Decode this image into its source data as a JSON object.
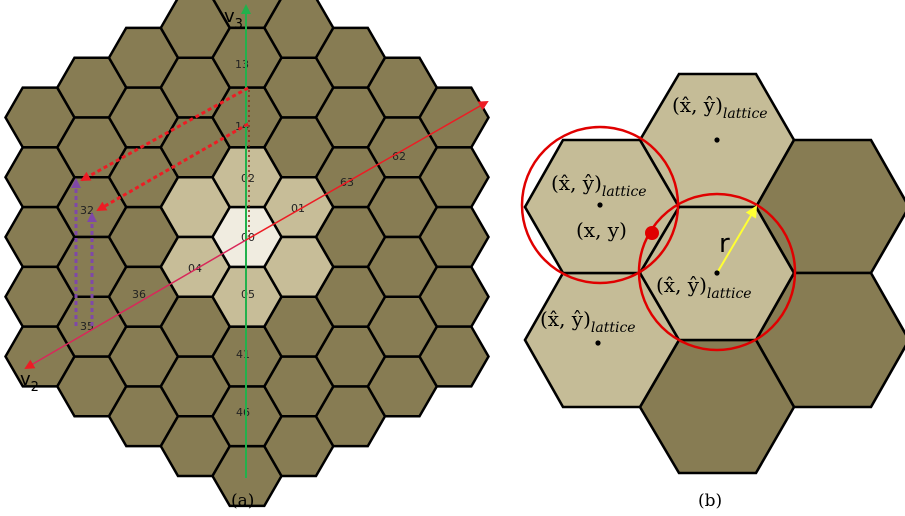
{
  "panel_a": {
    "caption": "(a)",
    "axes": {
      "v3_main": "v",
      "v3_sub": "3",
      "v2_main": "v",
      "v2_sub": "2"
    },
    "cells": [
      {
        "label": "00"
      },
      {
        "label": "01"
      },
      {
        "label": "02"
      },
      {
        "label": "04"
      },
      {
        "label": "05"
      },
      {
        "label": "13"
      },
      {
        "label": "14"
      },
      {
        "label": "32"
      },
      {
        "label": "35"
      },
      {
        "label": "36"
      },
      {
        "label": "41"
      },
      {
        "label": "46"
      },
      {
        "label": "62"
      },
      {
        "label": "63"
      }
    ],
    "colors": {
      "outer": "#877c53",
      "ring1": "#c7bd98",
      "center": "#f0ece0",
      "v3_axis": "#22b14c",
      "v1_axis": "#ed1c24",
      "v2_axis": "#a349a4",
      "path_red": "#ed1c24",
      "path_purple": "#7f48a8"
    }
  },
  "panel_b": {
    "caption": "(b)",
    "lattice_points": [
      {
        "main": "(x̂, ŷ)",
        "sub": "lattice"
      },
      {
        "main": "(x̂, ŷ)",
        "sub": "lattice"
      },
      {
        "main": "(x̂, ŷ)",
        "sub": "lattice"
      },
      {
        "main": "(x̂, ŷ)",
        "sub": "lattice"
      }
    ],
    "point": {
      "main": "(x, y)"
    },
    "radius_label": "r",
    "colors": {
      "tan": "#c5bc97",
      "olive": "#877c53",
      "circle": "#e00000",
      "radius": "#ffff33"
    }
  }
}
